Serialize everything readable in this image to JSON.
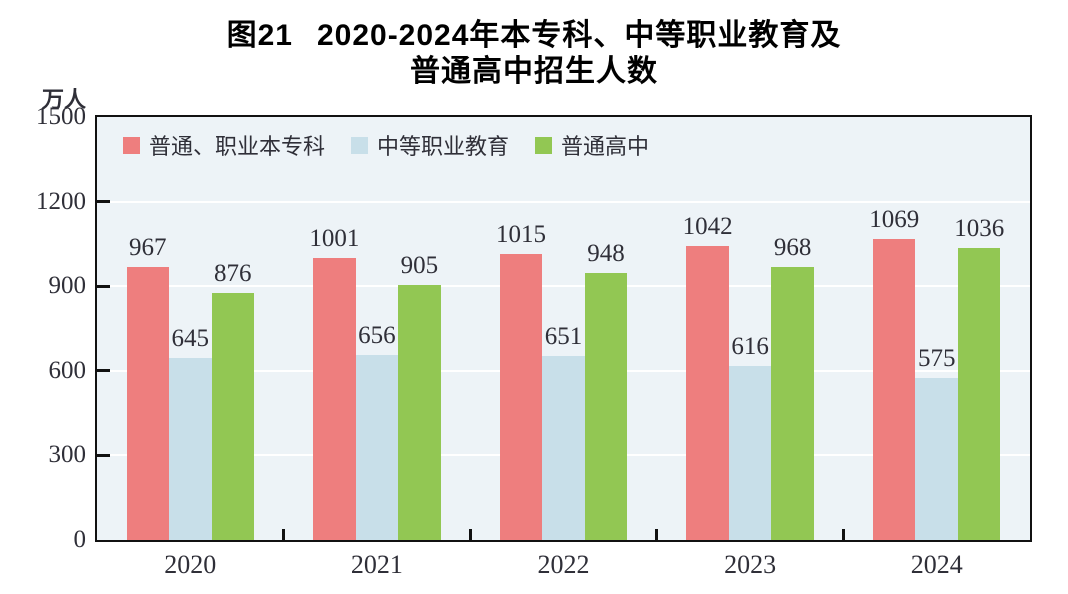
{
  "title": {
    "prefix": "图21",
    "line1": "2020-2024年本专科、中等职业教育及",
    "line2": "普通高中招生人数"
  },
  "y_axis_unit": "万人",
  "colors": {
    "plot_background": "#edf3f7",
    "gridline": "#ffffff",
    "axis": "#111111",
    "text": "#2f2f38"
  },
  "chart_data": {
    "type": "bar",
    "title": "图21 2020-2024年本专科、中等职业教育及普通高中招生人数",
    "ylabel": "万人",
    "categories": [
      "2020",
      "2021",
      "2022",
      "2023",
      "2024"
    ],
    "series": [
      {
        "name": "普通、职业本专科",
        "color": "#ee7e7e",
        "values": [
          967,
          1001,
          1015,
          1042,
          1069
        ]
      },
      {
        "name": "中等职业教育",
        "color": "#c8dfe9",
        "values": [
          645,
          656,
          651,
          616,
          575
        ]
      },
      {
        "name": "普通高中",
        "color": "#92c753",
        "values": [
          876,
          905,
          948,
          968,
          1036
        ]
      }
    ],
    "ylim": [
      0,
      1500
    ],
    "yticks": [
      0,
      300,
      600,
      900,
      1200,
      1500
    ],
    "grid": true,
    "legend_position": "top-left-inside",
    "bar_value_labels": true
  }
}
